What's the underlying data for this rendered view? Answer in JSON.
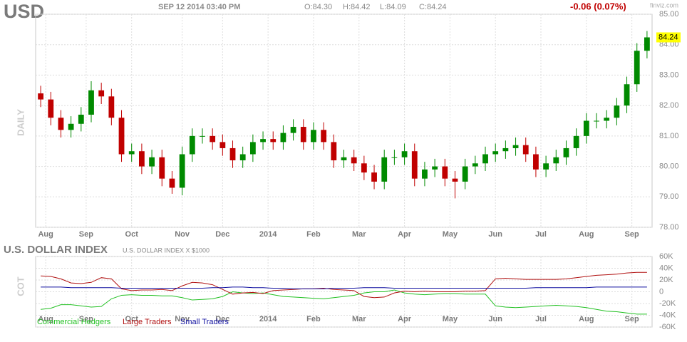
{
  "chart_data": [
    {
      "type": "candlestick",
      "title": "USD",
      "subtitle": "SEP 12 2014 03:40 PM",
      "ohlc_labels": [
        "O:84.30",
        "H:84.42",
        "L:84.09",
        "C:84.24"
      ],
      "change": "-0.06 (0.07%)",
      "source": "finviz.com",
      "ylabel": "DAILY",
      "last_label": "84.24",
      "up_color": "#008a00",
      "down_color": "#c00000",
      "open": [
        82.4,
        82.2,
        81.6,
        81.2,
        81.4,
        81.7,
        82.5,
        82.3,
        81.6,
        80.4,
        80.5,
        80.0,
        80.3,
        79.6,
        79.3,
        80.4,
        81.0,
        81.0,
        80.8,
        80.6,
        80.2,
        80.4,
        80.8,
        80.9,
        80.8,
        81.1,
        81.3,
        80.8,
        81.2,
        80.8,
        80.2,
        80.3,
        80.1,
        79.8,
        79.5,
        80.3,
        80.3,
        80.5,
        79.6,
        79.9,
        80.0,
        79.6,
        79.5,
        80.0,
        80.1,
        80.4,
        80.5,
        80.6,
        80.7,
        80.4,
        79.9,
        80.1,
        80.3,
        80.6,
        81.0,
        81.5,
        81.5,
        81.6,
        82.0,
        82.7,
        83.8
      ],
      "high": [
        82.65,
        82.45,
        81.85,
        81.65,
        81.95,
        82.8,
        82.75,
        82.55,
        81.85,
        80.75,
        80.75,
        80.55,
        80.55,
        79.85,
        80.65,
        81.25,
        81.25,
        81.25,
        81.05,
        80.85,
        80.65,
        81.05,
        81.15,
        81.15,
        81.35,
        81.55,
        81.55,
        81.45,
        81.45,
        81.05,
        80.55,
        80.55,
        80.35,
        80.05,
        80.55,
        80.55,
        80.75,
        80.75,
        80.15,
        80.25,
        80.25,
        79.85,
        80.25,
        80.35,
        80.65,
        80.75,
        80.85,
        80.95,
        80.95,
        80.65,
        80.35,
        80.55,
        80.85,
        81.25,
        81.75,
        81.75,
        81.85,
        82.25,
        82.95,
        84.05,
        84.45
      ],
      "low": [
        81.95,
        81.35,
        80.95,
        80.95,
        81.15,
        81.45,
        82.05,
        81.35,
        80.15,
        80.15,
        79.75,
        79.75,
        79.35,
        79.1,
        79.05,
        80.15,
        80.75,
        80.55,
        80.35,
        79.95,
        79.95,
        80.15,
        80.55,
        80.55,
        80.55,
        80.85,
        80.55,
        80.55,
        80.55,
        79.95,
        79.95,
        79.85,
        79.55,
        79.25,
        79.25,
        80.05,
        80.05,
        79.35,
        79.35,
        79.65,
        79.35,
        78.95,
        79.25,
        79.75,
        79.85,
        80.15,
        80.25,
        80.35,
        80.15,
        79.65,
        79.65,
        79.85,
        80.05,
        80.35,
        80.75,
        81.25,
        81.25,
        81.35,
        81.75,
        82.45,
        83.55
      ],
      "close": [
        82.2,
        81.6,
        81.2,
        81.4,
        81.7,
        82.5,
        82.3,
        81.6,
        80.4,
        80.5,
        80.0,
        80.3,
        79.6,
        79.3,
        80.4,
        81.0,
        81.0,
        80.8,
        80.6,
        80.2,
        80.4,
        80.8,
        80.9,
        80.8,
        81.1,
        81.3,
        80.8,
        81.2,
        80.8,
        80.2,
        80.3,
        80.1,
        79.8,
        79.5,
        80.3,
        80.3,
        80.5,
        79.6,
        79.9,
        80.0,
        79.6,
        79.5,
        80.0,
        80.1,
        80.4,
        80.5,
        80.6,
        80.7,
        80.4,
        79.9,
        80.1,
        80.3,
        80.6,
        81.0,
        81.5,
        81.5,
        81.6,
        82.0,
        82.7,
        83.8,
        84.24
      ],
      "xlim": [
        0,
        61
      ],
      "xticks": [
        {
          "value": 1,
          "label": "Aug"
        },
        {
          "value": 5,
          "label": "Sep"
        },
        {
          "value": 9.5,
          "label": "Oct"
        },
        {
          "value": 14.5,
          "label": "Nov"
        },
        {
          "value": 18.5,
          "label": "Dec"
        },
        {
          "value": 23,
          "label": "2014"
        },
        {
          "value": 27.5,
          "label": "Feb"
        },
        {
          "value": 32,
          "label": "Mar"
        },
        {
          "value": 36.5,
          "label": "Apr"
        },
        {
          "value": 41,
          "label": "May"
        },
        {
          "value": 45.5,
          "label": "Jun"
        },
        {
          "value": 50,
          "label": "Jul"
        },
        {
          "value": 54.5,
          "label": "Aug"
        },
        {
          "value": 59,
          "label": "Sep"
        }
      ],
      "ylim": [
        78,
        85
      ],
      "yticks": [
        {
          "value": 78,
          "label": "78.00"
        },
        {
          "value": 79,
          "label": "79.00"
        },
        {
          "value": 80,
          "label": "80.00"
        },
        {
          "value": 81,
          "label": "81.00"
        },
        {
          "value": 82,
          "label": "82.00"
        },
        {
          "value": 83,
          "label": "83.00"
        },
        {
          "value": 84,
          "label": "84.00"
        },
        {
          "value": 85,
          "label": "85.00"
        }
      ],
      "grid": true
    },
    {
      "type": "line",
      "title": "U.S. DOLLAR INDEX",
      "subtitle": "U.S. DOLLAR INDEX X $1000",
      "ylabel": "COT",
      "xlim": [
        0,
        61
      ],
      "xticks": [
        {
          "value": 1,
          "label": "Aug"
        },
        {
          "value": 5,
          "label": "Sep"
        },
        {
          "value": 9.5,
          "label": "Oct"
        },
        {
          "value": 14.5,
          "label": "Nov"
        },
        {
          "value": 18.5,
          "label": "Dec"
        },
        {
          "value": 23,
          "label": "2014"
        },
        {
          "value": 27.5,
          "label": "Feb"
        },
        {
          "value": 32,
          "label": "Mar"
        },
        {
          "value": 36.5,
          "label": "Apr"
        },
        {
          "value": 41,
          "label": "May"
        },
        {
          "value": 45.5,
          "label": "Jun"
        },
        {
          "value": 50,
          "label": "Jul"
        },
        {
          "value": 54.5,
          "label": "Aug"
        },
        {
          "value": 59,
          "label": "Sep"
        }
      ],
      "ylim": [
        -60000,
        60000
      ],
      "yticks": [
        {
          "value": 60000,
          "label": "60K"
        },
        {
          "value": 40000,
          "label": "40K"
        },
        {
          "value": 20000,
          "label": "20K"
        },
        0,
        {
          "value": -20000,
          "label": "-20K"
        },
        {
          "value": -40000,
          "label": "-40K"
        },
        {
          "value": -60000,
          "label": "-60K"
        }
      ],
      "grid": true,
      "series": [
        {
          "name": "Commercial Hedgers",
          "color": "#22c022",
          "values": [
            -30000,
            -28000,
            -22000,
            -22000,
            -24000,
            -26000,
            -25000,
            -12000,
            -6000,
            -5000,
            -6000,
            -6000,
            -7000,
            -7000,
            -10000,
            -14000,
            -13000,
            -12000,
            -8000,
            0,
            -2000,
            -3000,
            -2000,
            -5000,
            -8000,
            -9000,
            -10000,
            -11000,
            -12000,
            -10000,
            -8000,
            -6000,
            -2000,
            0,
            0,
            3000,
            -2000,
            -4000,
            -5000,
            -4000,
            -3000,
            -3000,
            -4000,
            -4000,
            -4000,
            -24000,
            -26000,
            -27000,
            -26000,
            -25000,
            -24000,
            -23000,
            -24000,
            -25000,
            -27000,
            -30000,
            -33000,
            -34000,
            -36000,
            -38000,
            -38000
          ]
        },
        {
          "name": "Large Traders",
          "color": "#b01010",
          "values": [
            27000,
            26000,
            22000,
            15000,
            14000,
            16000,
            24000,
            22000,
            5000,
            2000,
            3000,
            3000,
            4000,
            2000,
            10000,
            16000,
            15000,
            12000,
            4000,
            -4000,
            -2000,
            -1000,
            -3000,
            2000,
            3000,
            4000,
            5000,
            5000,
            6000,
            4000,
            3000,
            2000,
            -8000,
            -10000,
            -9000,
            -2000,
            1000,
            0,
            1000,
            0,
            0,
            0,
            1000,
            1000,
            2000,
            22000,
            23000,
            22000,
            21000,
            21000,
            21000,
            21000,
            22000,
            24000,
            26000,
            28000,
            29000,
            30000,
            32000,
            33000,
            33000
          ]
        },
        {
          "name": "Small Traders",
          "color": "#1010a0",
          "values": [
            8000,
            8000,
            8000,
            7000,
            7000,
            7000,
            7000,
            7000,
            6000,
            6000,
            6000,
            6000,
            6000,
            6000,
            6000,
            6000,
            6000,
            7000,
            7000,
            8000,
            8000,
            7000,
            7000,
            6000,
            6000,
            5000,
            5000,
            5000,
            5000,
            6000,
            6000,
            6000,
            7000,
            7000,
            7000,
            6000,
            6000,
            6000,
            6000,
            6000,
            6000,
            6000,
            6000,
            6000,
            6000,
            6000,
            6000,
            6000,
            6000,
            7000,
            7000,
            7000,
            7000,
            7000,
            7000,
            8000,
            8000,
            8000,
            8000,
            8000,
            8000
          ]
        }
      ]
    }
  ]
}
